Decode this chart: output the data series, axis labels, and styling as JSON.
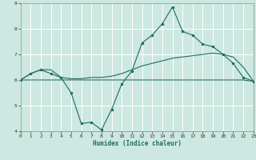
{
  "xlabel": "Humidex (Indice chaleur)",
  "bg_color": "#cce8e0",
  "grid_color": "#ffffff",
  "line_color": "#1e6e5e",
  "x_min": 0,
  "x_max": 23,
  "y_min": 4,
  "y_max": 9,
  "x_ticks": [
    0,
    1,
    2,
    3,
    4,
    5,
    6,
    7,
    8,
    9,
    10,
    11,
    12,
    13,
    14,
    15,
    16,
    17,
    18,
    19,
    20,
    21,
    22,
    23
  ],
  "y_ticks": [
    4,
    5,
    6,
    7,
    8,
    9
  ],
  "series1_x": [
    0,
    1,
    2,
    3,
    4,
    5,
    6,
    7,
    8,
    9,
    10,
    11,
    12,
    13,
    14,
    15,
    16,
    17,
    18,
    19,
    20,
    21,
    22,
    23
  ],
  "series1_y": [
    6.0,
    6.25,
    6.4,
    6.25,
    6.1,
    5.5,
    4.3,
    4.35,
    4.05,
    4.85,
    5.85,
    6.35,
    7.45,
    7.75,
    8.2,
    8.85,
    7.9,
    7.75,
    7.4,
    7.3,
    7.0,
    6.65,
    6.1,
    5.95
  ],
  "series2_x": [
    0,
    1,
    2,
    3,
    4,
    5,
    6,
    7,
    8,
    9,
    10,
    11,
    12,
    13,
    14,
    15,
    16,
    17,
    18,
    19,
    20,
    21,
    22,
    23
  ],
  "series2_y": [
    6.0,
    6.25,
    6.4,
    6.4,
    6.1,
    6.05,
    6.05,
    6.1,
    6.1,
    6.15,
    6.25,
    6.4,
    6.55,
    6.65,
    6.75,
    6.85,
    6.9,
    6.95,
    7.0,
    7.05,
    7.0,
    6.9,
    6.5,
    5.95
  ],
  "series3_x": [
    0,
    1,
    2,
    3,
    4,
    5,
    6,
    7,
    8,
    9,
    10,
    11,
    12,
    13,
    14,
    15,
    16,
    17,
    18,
    19,
    20,
    21,
    22,
    23
  ],
  "series3_y": [
    6.0,
    6.0,
    6.0,
    6.0,
    6.0,
    6.0,
    6.0,
    6.0,
    6.0,
    6.0,
    6.0,
    6.0,
    6.0,
    6.0,
    6.0,
    6.0,
    6.0,
    6.0,
    6.0,
    6.0,
    6.0,
    6.0,
    6.0,
    5.95
  ],
  "lw": 0.8,
  "marker_size": 2.5,
  "tick_fontsize": 4.5,
  "xlabel_fontsize": 5.5
}
